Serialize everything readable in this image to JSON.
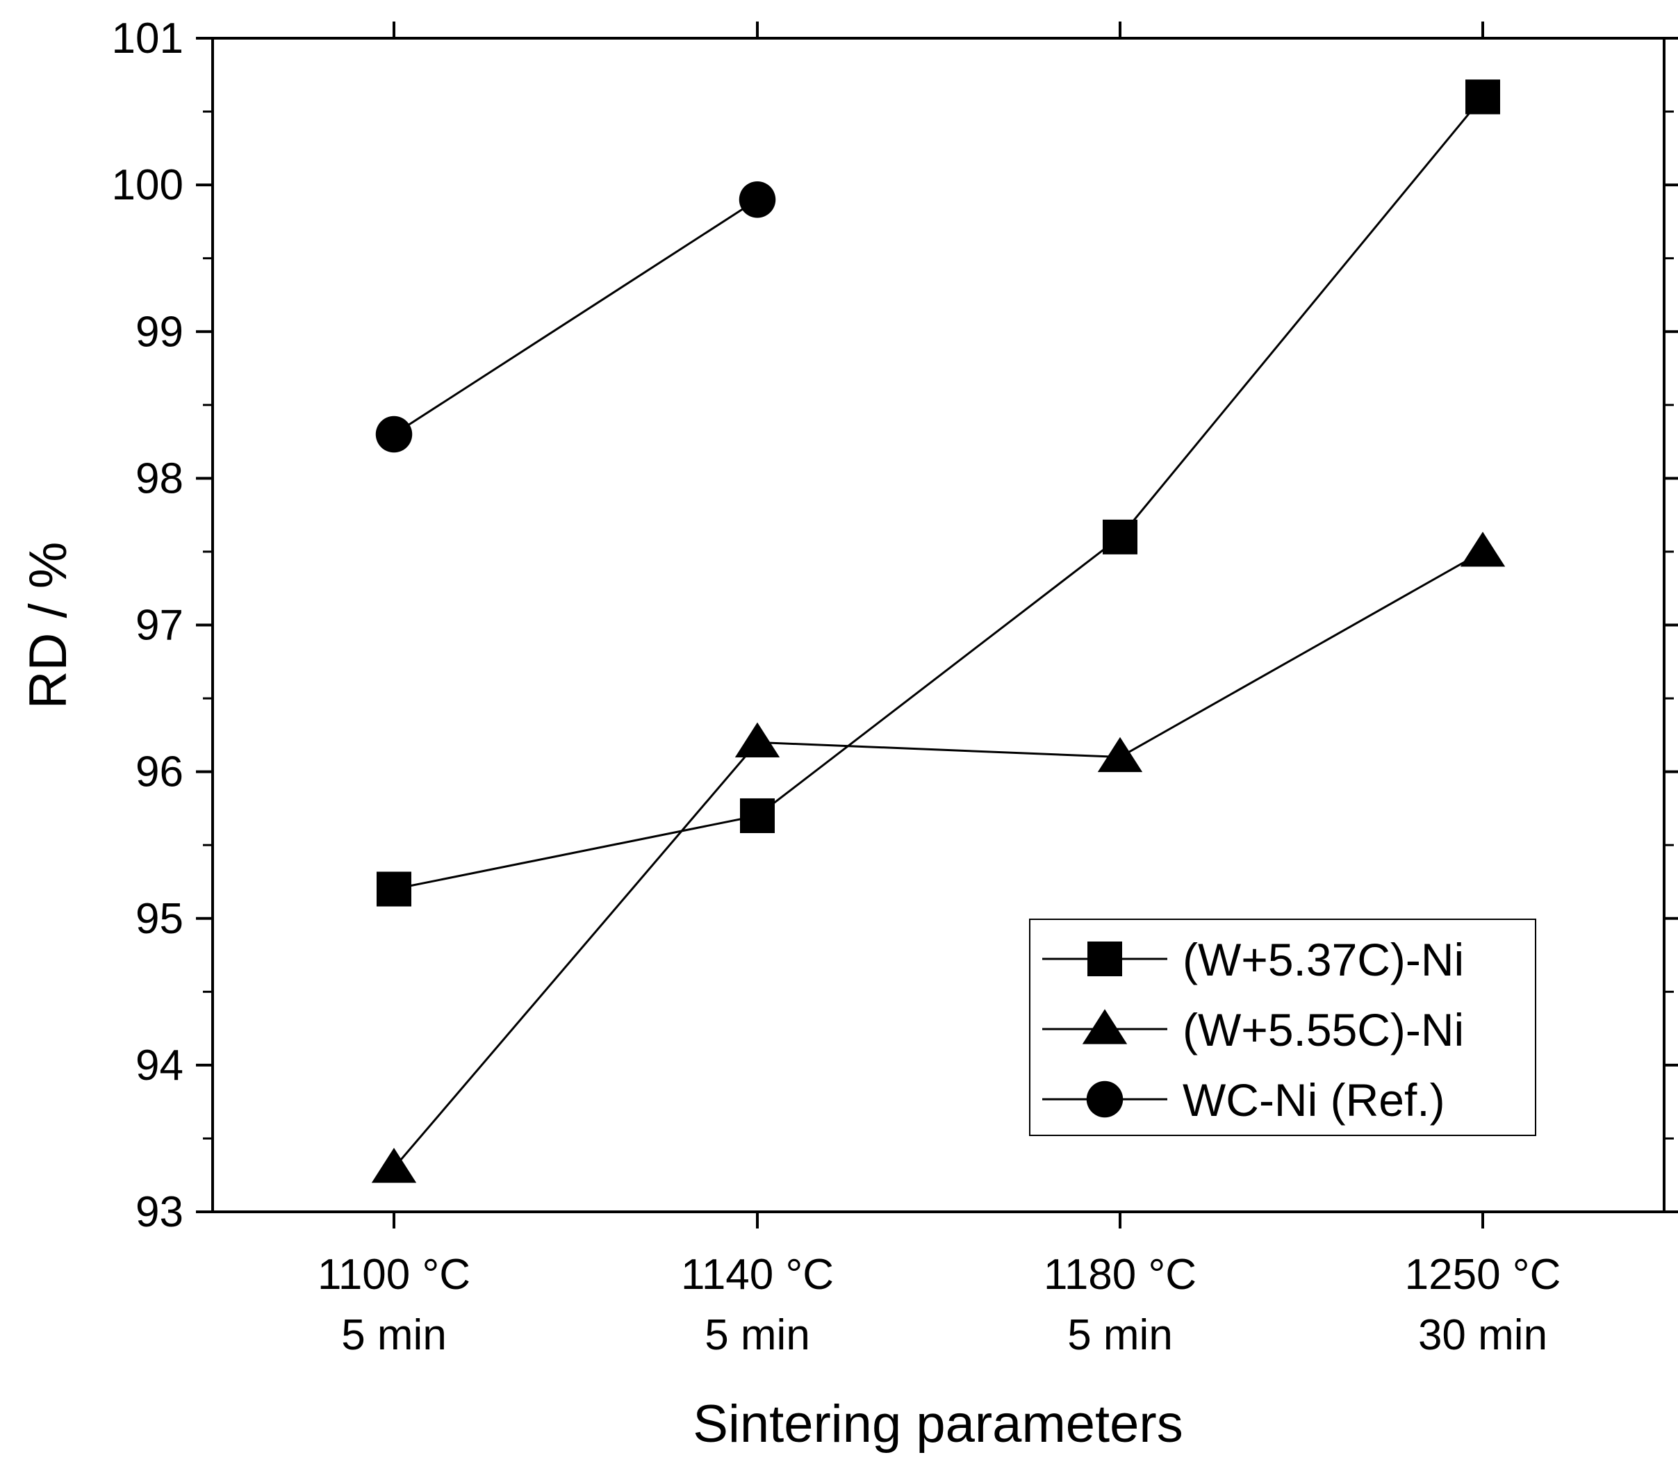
{
  "chart_data": {
    "type": "line",
    "title": "",
    "xlabel": "Sintering parameters",
    "ylabel": "RD / %",
    "categories": [
      [
        "1100 °C",
        "5 min"
      ],
      [
        "1140 °C",
        "5 min"
      ],
      [
        "1180 °C",
        "5 min"
      ],
      [
        "1250 °C",
        "30 min"
      ]
    ],
    "ylim": [
      93,
      101
    ],
    "yticks": [
      "93",
      "94",
      "95",
      "96",
      "97",
      "98",
      "99",
      "100",
      "101"
    ],
    "grid": false,
    "legend_position": "bottom-right",
    "series": [
      {
        "name": "(W+5.37C)-Ni",
        "marker": "square",
        "values": [
          95.2,
          95.7,
          97.6,
          100.6
        ]
      },
      {
        "name": "(W+5.55C)-Ni",
        "marker": "triangle",
        "values": [
          93.3,
          96.2,
          96.1,
          97.5
        ]
      },
      {
        "name": "WC-Ni (Ref.)",
        "marker": "circle",
        "values": [
          98.3,
          99.9,
          null,
          null
        ]
      }
    ],
    "colors": {
      "line": "#000000",
      "marker": "#000000",
      "background": "#ffffff"
    }
  }
}
